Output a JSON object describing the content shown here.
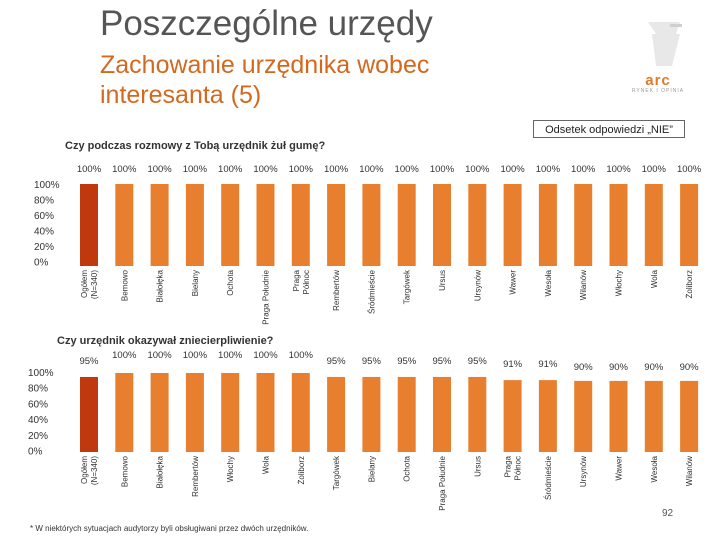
{
  "header": {
    "title": "Poszczególne urzędy",
    "subtitle": "Zachowanie urzędnika wobec interesanta (5)"
  },
  "logo": {
    "text": "arc",
    "sub": "RYNEK I OPINIA"
  },
  "legend_label": "Odsetek odpowiedzi „NIE”",
  "colors": {
    "highlight": "#c0390e",
    "bar": "#e87f2f",
    "title": "#555555",
    "subtitle": "#d2691e"
  },
  "footnote": "* W niektórych sytuacjach audytorzy byli obsługiwani przez dwóch urzędników.",
  "page_number": "92",
  "chart_data": [
    {
      "type": "bar",
      "title": "Czy podczas rozmowy z Tobą urzędnik żuł gumę?",
      "ylim": [
        0,
        100
      ],
      "yticks": [
        "100%",
        "80%",
        "60%",
        "40%",
        "20%",
        "0%"
      ],
      "categories": [
        "Ogółem\n(N=340)",
        "Bemowo",
        "Białołęka",
        "Bielany",
        "Ochota",
        "Praga Południe",
        "Praga\nPółnoc",
        "Rembertów",
        "Śródmieście",
        "Targówek",
        "Ursus",
        "Ursynów",
        "Wawer",
        "Wesoła",
        "Wilanów",
        "Włochy",
        "Wola",
        "Żoliborz"
      ],
      "values": [
        100,
        100,
        100,
        100,
        100,
        100,
        100,
        100,
        100,
        100,
        100,
        100,
        100,
        100,
        100,
        100,
        100,
        100
      ],
      "value_labels": [
        "100%",
        "100%",
        "100%",
        "100%",
        "100%",
        "100%",
        "100%",
        "100%",
        "100%",
        "100%",
        "100%",
        "100%",
        "100%",
        "100%",
        "100%",
        "100%",
        "100%",
        "100%"
      ]
    },
    {
      "type": "bar",
      "title": "Czy urzędnik okazywał zniecierpliwienie?",
      "ylim": [
        0,
        100
      ],
      "yticks": [
        "100%",
        "80%",
        "60%",
        "40%",
        "20%",
        "0%"
      ],
      "categories": [
        "Ogółem\n(N=340)",
        "Bemowo",
        "Białołęka",
        "Rembertów",
        "Włochy",
        "Wola",
        "Żoliborz",
        "Targówek",
        "Bielany",
        "Ochota",
        "Praga Południe",
        "Ursus",
        "Praga\nPółnoc",
        "Śródmieście",
        "Ursynów",
        "Wawer",
        "Wesoła",
        "Wilanów"
      ],
      "values": [
        95,
        100,
        100,
        100,
        100,
        100,
        100,
        95,
        95,
        95,
        95,
        95,
        91,
        91,
        90,
        90,
        90,
        90
      ],
      "value_labels": [
        "95%",
        "100%",
        "100%",
        "100%",
        "100%",
        "100%",
        "100%",
        "95%",
        "95%",
        "95%",
        "95%",
        "95%",
        "91%",
        "91%",
        "90%",
        "90%",
        "90%",
        "90%"
      ]
    }
  ]
}
